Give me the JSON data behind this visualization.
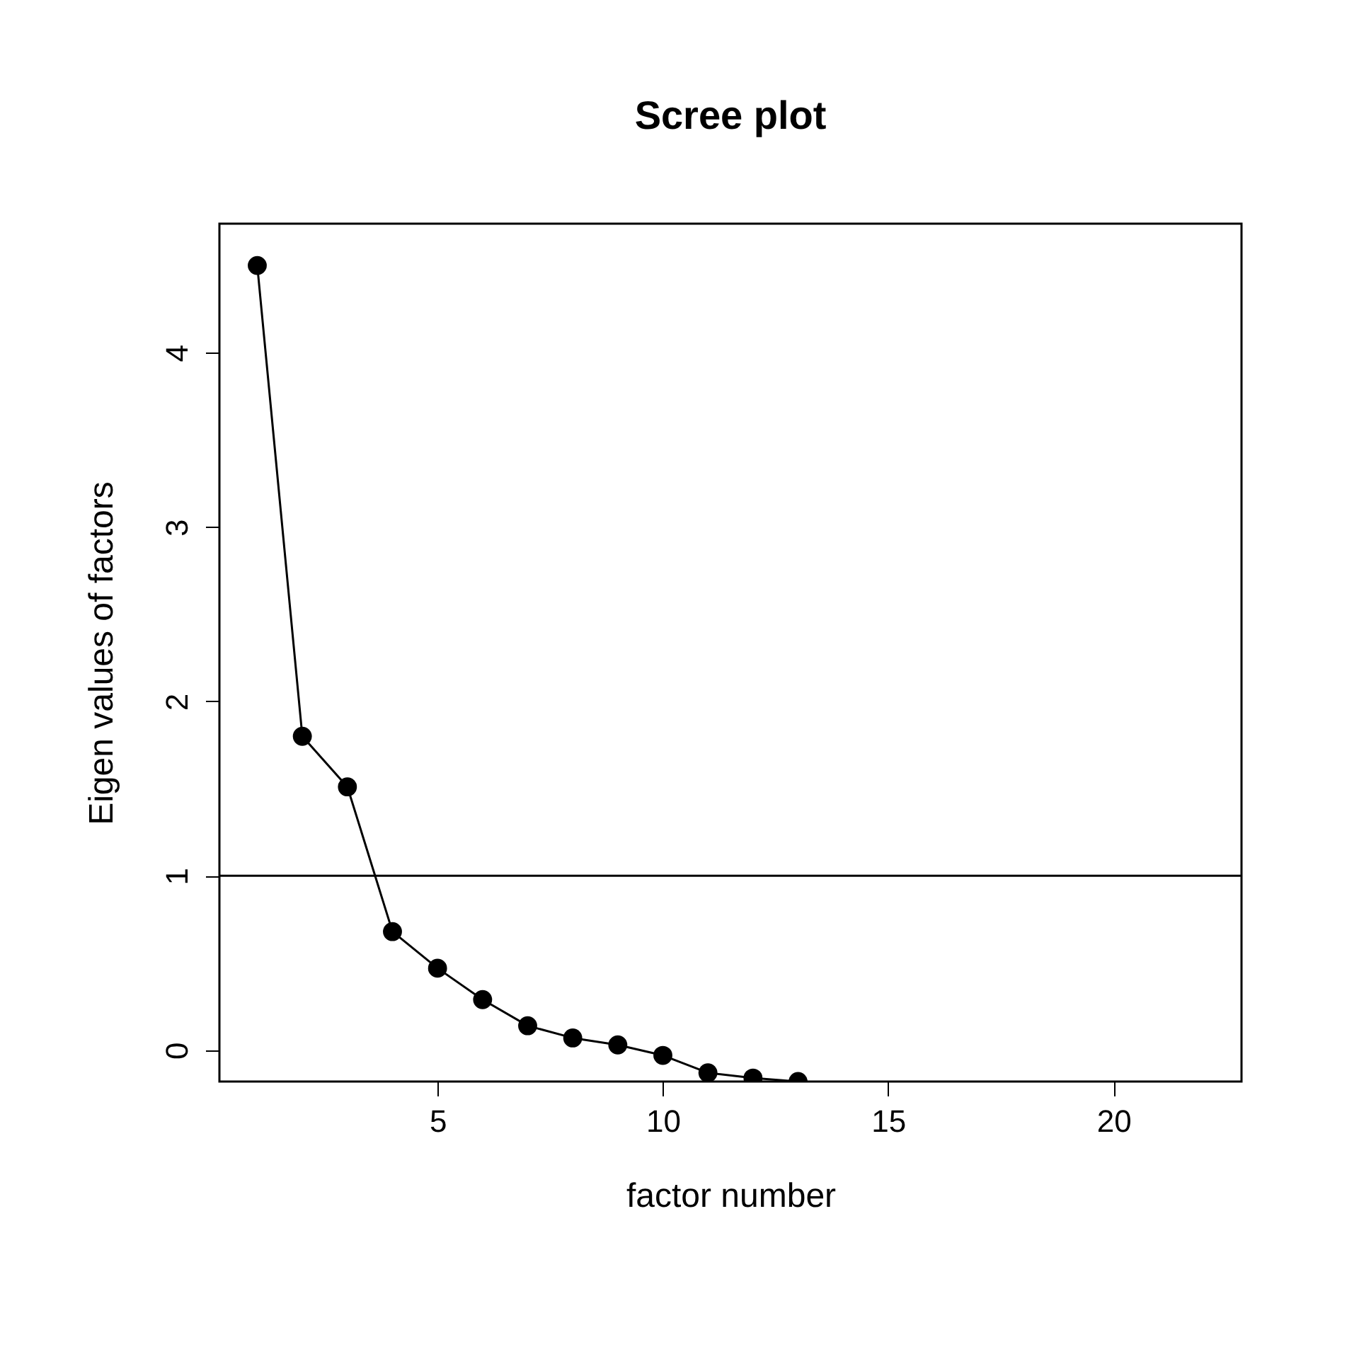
{
  "chart_data": {
    "type": "line",
    "title": "Scree plot",
    "xlabel": "factor number",
    "ylabel": "Eigen values of factors",
    "x": [
      1,
      2,
      3,
      4,
      5,
      6,
      7,
      8,
      9,
      10,
      11,
      12,
      13
    ],
    "series": [
      {
        "color": "#000000",
        "values": [
          4.5,
          1.8,
          1.51,
          0.68,
          0.47,
          0.29,
          0.14,
          0.07,
          0.03,
          -0.03,
          -0.13,
          -0.16,
          -0.18
        ]
      }
    ],
    "xlim": [
      0.16,
      22.84
    ],
    "ylim": [
      -0.18,
      4.74
    ],
    "xticks": [
      5,
      10,
      15,
      20
    ],
    "yticks": [
      0,
      1,
      2,
      3,
      4
    ],
    "ref_lines": [
      {
        "axis": "y",
        "value": 1,
        "color": "#000000",
        "line_style": "solid"
      }
    ],
    "marker": "circle",
    "line_style": "solid",
    "grid": false
  }
}
